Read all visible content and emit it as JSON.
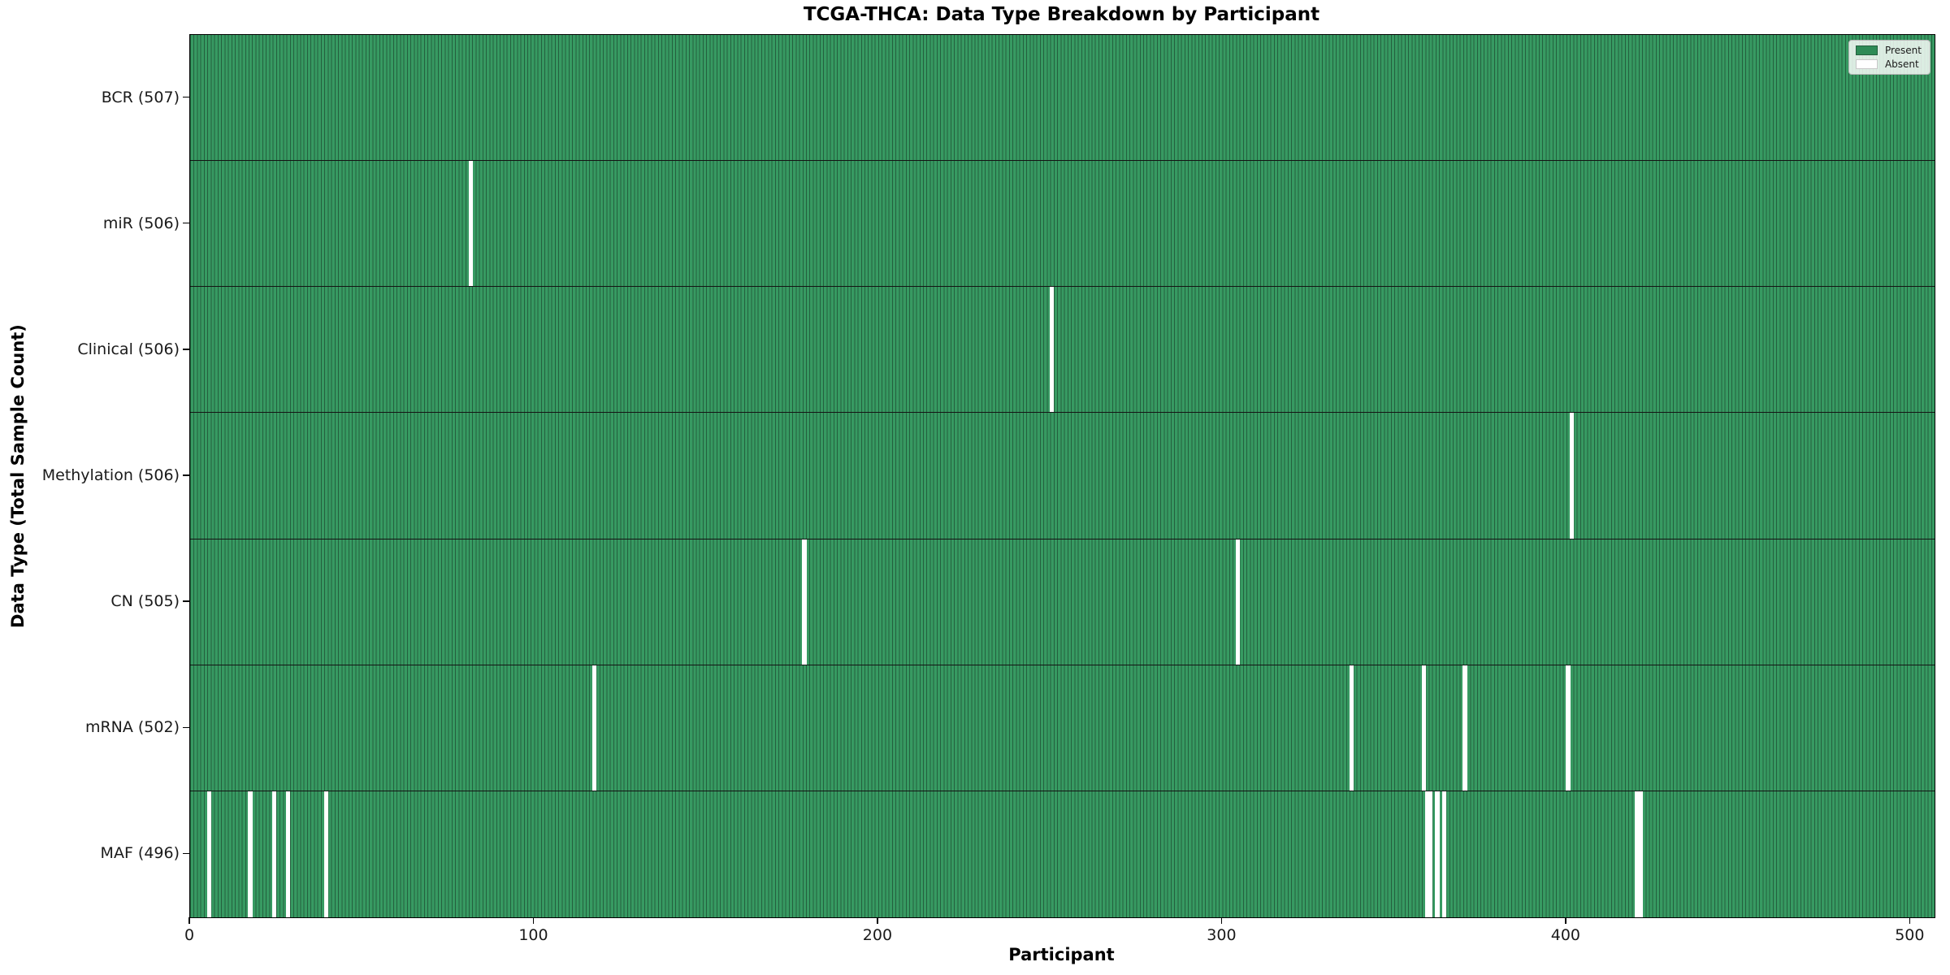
{
  "title": "TCGA-THCA: Data Type Breakdown by Participant",
  "axes": {
    "xlabel": "Participant",
    "ylabel": "Data Type (Total Sample Count)"
  },
  "legend": {
    "position": "upper right",
    "present_label": "Present",
    "absent_label": "Absent"
  },
  "colors": {
    "present_fill": "#2e8b57",
    "bar_edge": "#24603e",
    "absent_fill": "#ffffff",
    "row_divider": "#141414"
  },
  "chart_data": {
    "type": "heatmap",
    "subtype": "presence-absence-matrix",
    "title": "TCGA-THCA: Data Type Breakdown by Participant",
    "xlabel": "Participant",
    "ylabel": "Data Type (Total Sample Count)",
    "x_range": [
      0,
      507
    ],
    "total_participants": 507,
    "x_ticks": [
      0,
      100,
      200,
      300,
      400,
      500
    ],
    "grid": false,
    "rows": [
      {
        "label": "BCR (507)",
        "data_type": "BCR",
        "present_count": 507,
        "absent_participants": []
      },
      {
        "label": "miR (506)",
        "data_type": "miR",
        "present_count": 506,
        "absent_participants": [
          81
        ]
      },
      {
        "label": "Clinical (506)",
        "data_type": "Clinical",
        "present_count": 506,
        "absent_participants": [
          250
        ]
      },
      {
        "label": "Methylation (506)",
        "data_type": "Methylation",
        "present_count": 506,
        "absent_participants": [
          401
        ]
      },
      {
        "label": "CN (505)",
        "data_type": "CN",
        "present_count": 505,
        "absent_participants": [
          178,
          304
        ]
      },
      {
        "label": "mRNA (502)",
        "data_type": "mRNA",
        "present_count": 502,
        "absent_participants": [
          117,
          337,
          358,
          370,
          400
        ]
      },
      {
        "label": "MAF (496)",
        "data_type": "MAF",
        "present_count": 496,
        "absent_participants": [
          5,
          17,
          24,
          28,
          39,
          359,
          360,
          362,
          364,
          420,
          421
        ]
      }
    ]
  }
}
